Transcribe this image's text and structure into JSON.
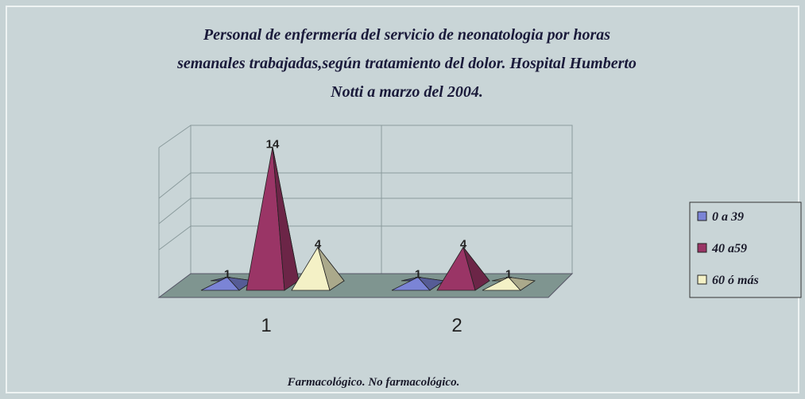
{
  "chart_data": {
    "type": "pyramid3d",
    "title": [
      "Personal de enfermería del servicio de neonatologia por horas",
      "semanales trabajadas,según tratamiento del dolor. Hospital Humberto",
      "Notti a marzo del 2004."
    ],
    "caption": "Farmacológico. No farmacológico.",
    "categories": [
      "1",
      "2"
    ],
    "series": [
      {
        "name": "0 a 39",
        "color": "#7b84d6",
        "values": [
          1,
          1
        ]
      },
      {
        "name": "40 a59",
        "color": "#9a3566",
        "values": [
          14,
          4
        ]
      },
      {
        "name": "60 ó más",
        "color": "#f4f1c6",
        "values": [
          4,
          1
        ]
      }
    ],
    "ylim": [
      0,
      16
    ]
  }
}
